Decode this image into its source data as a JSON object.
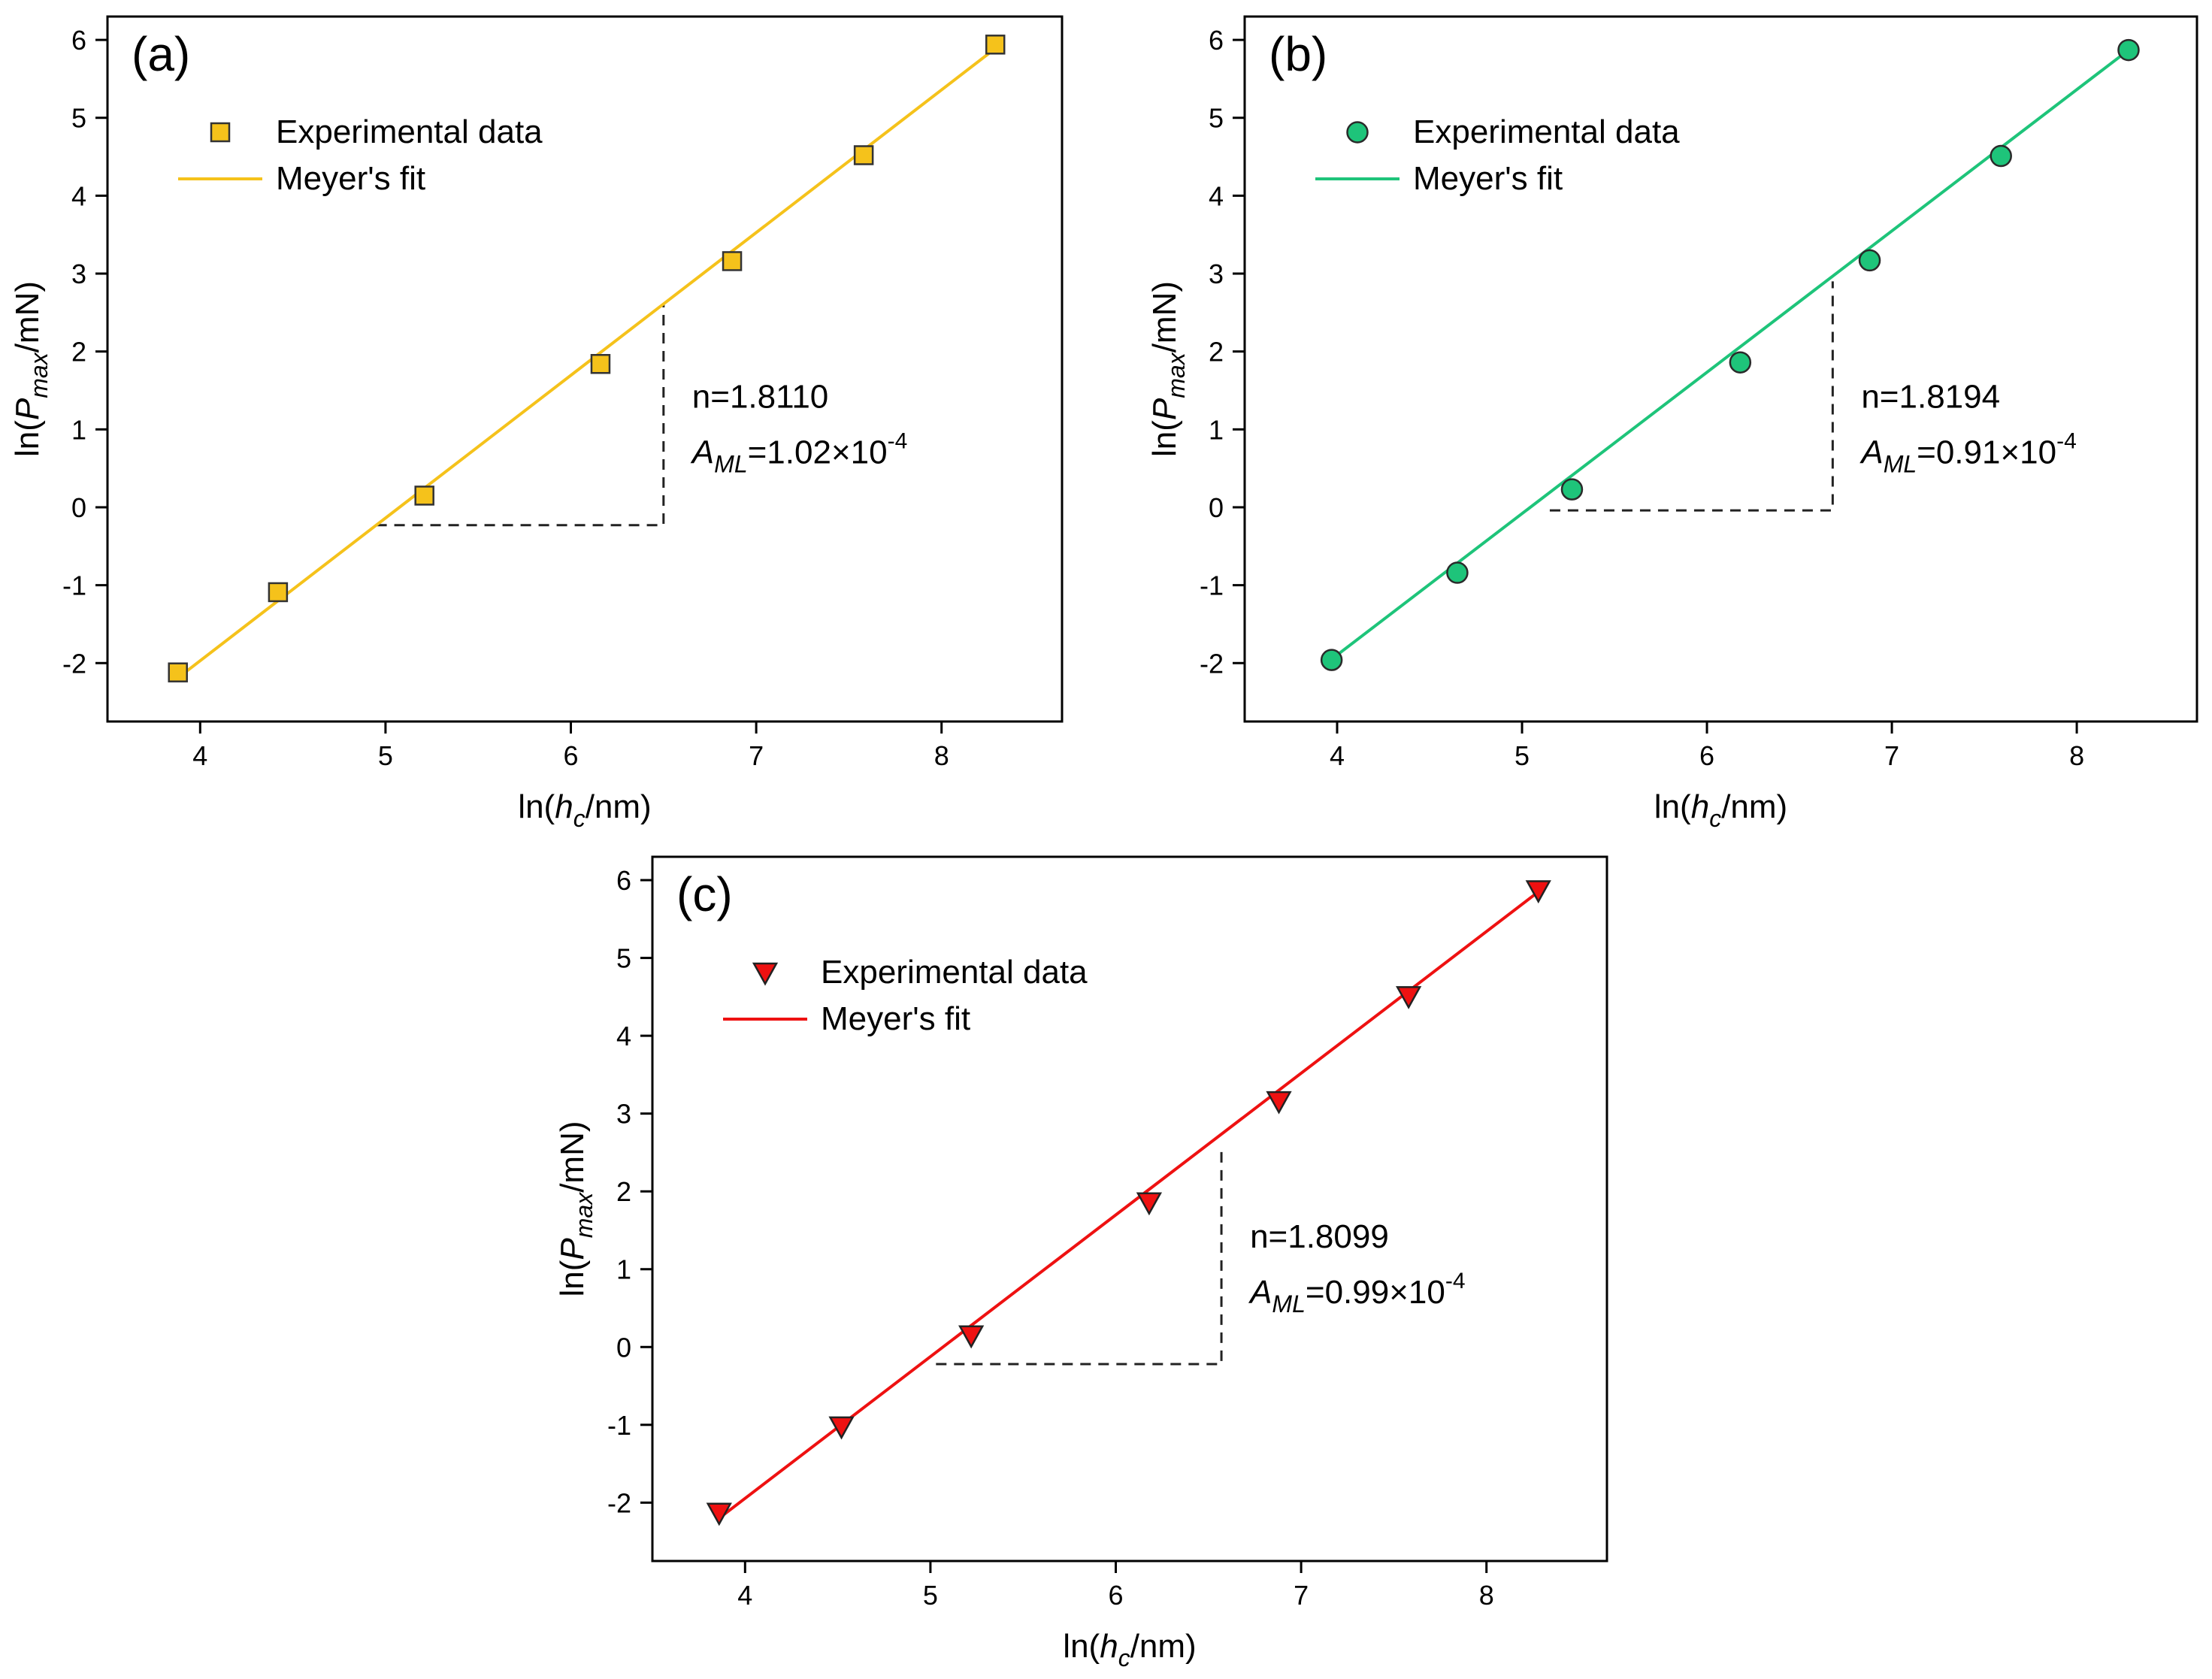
{
  "chart_data": [
    {
      "type": "scatter",
      "panel_label": "(a)",
      "color": "#f5c21b",
      "edge_color": "#333333",
      "marker": "square",
      "xlabel_prefix": "ln(",
      "xlabel_italic": "h",
      "xlabel_sub": "c",
      "xlabel_suffix": "/nm)",
      "ylabel_prefix": "ln(",
      "ylabel_italic": "P",
      "ylabel_sub": "max",
      "ylabel_suffix": "/mN)",
      "xlim": [
        3.5,
        8.65
      ],
      "ylim": [
        -2.75,
        6.3
      ],
      "xticks": [
        4,
        5,
        6,
        7,
        8
      ],
      "xtick_labels": [
        "4",
        "5",
        "6",
        "7",
        "8"
      ],
      "yticks": [
        -2,
        -1,
        0,
        1,
        2,
        3,
        4,
        5,
        6
      ],
      "ytick_labels": [
        "-2",
        "-1",
        "0",
        "1",
        "2",
        "3",
        "4",
        "5",
        "6"
      ],
      "series": [
        {
          "name": "Experimental data",
          "x": [
            3.88,
            4.42,
            5.21,
            6.16,
            6.87,
            7.58,
            8.29
          ],
          "y": [
            -2.12,
            -1.09,
            0.15,
            1.84,
            3.16,
            4.52,
            5.94
          ]
        },
        {
          "name": "Meyer's fit",
          "x": [
            3.88,
            8.29
          ],
          "y": [
            -2.19,
            5.89
          ]
        }
      ],
      "triangle": {
        "x": [
          4.95,
          6.5
        ],
        "y": [
          -0.23,
          2.6
        ]
      },
      "annotation_n": "n=1.8110",
      "annotation_A": "A",
      "annotation_A_sub": "ML",
      "annotation_A_value": "=1.02×10",
      "annotation_A_exp": "-4"
    },
    {
      "type": "scatter",
      "panel_label": "(b)",
      "color": "#1ec47a",
      "edge_color": "#2a2a2a",
      "marker": "circle",
      "xlabel_prefix": "ln(",
      "xlabel_italic": "h",
      "xlabel_sub": "c",
      "xlabel_suffix": "/nm)",
      "ylabel_prefix": "ln(",
      "ylabel_italic": "P",
      "ylabel_sub": "max",
      "ylabel_suffix": "/mN)",
      "xlim": [
        3.5,
        8.65
      ],
      "ylim": [
        -2.75,
        6.3
      ],
      "xticks": [
        4,
        5,
        6,
        7,
        8
      ],
      "xtick_labels": [
        "4",
        "5",
        "6",
        "7",
        "8"
      ],
      "yticks": [
        -2,
        -1,
        0,
        1,
        2,
        3,
        4,
        5,
        6
      ],
      "ytick_labels": [
        "-2",
        "-1",
        "0",
        "1",
        "2",
        "3",
        "4",
        "5",
        "6"
      ],
      "series": [
        {
          "name": "Experimental data",
          "x": [
            3.97,
            4.65,
            5.27,
            6.18,
            6.88,
            7.59,
            8.28
          ],
          "y": [
            -1.96,
            -0.84,
            0.23,
            1.86,
            3.17,
            4.51,
            5.87
          ]
        },
        {
          "name": "Meyer's fit",
          "x": [
            3.97,
            8.28
          ],
          "y": [
            -1.95,
            5.87
          ]
        }
      ],
      "triangle": {
        "x": [
          5.15,
          6.68
        ],
        "y": [
          -0.04,
          2.9
        ]
      },
      "annotation_n": "n=1.8194",
      "annotation_A": "A",
      "annotation_A_sub": "ML",
      "annotation_A_value": "=0.91×10",
      "annotation_A_exp": "-4"
    },
    {
      "type": "scatter",
      "panel_label": "(c)",
      "color": "#ee1111",
      "edge_color": "#222222",
      "marker": "triangle-down",
      "xlabel_prefix": "ln(",
      "xlabel_italic": "h",
      "xlabel_sub": "c",
      "xlabel_suffix": "/nm)",
      "ylabel_prefix": "ln(",
      "ylabel_italic": "P",
      "ylabel_sub": "max",
      "ylabel_suffix": "/mN)",
      "xlim": [
        3.5,
        8.65
      ],
      "ylim": [
        -2.75,
        6.3
      ],
      "xticks": [
        4,
        5,
        6,
        7,
        8
      ],
      "xtick_labels": [
        "4",
        "5",
        "6",
        "7",
        "8"
      ],
      "yticks": [
        -2,
        -1,
        0,
        1,
        2,
        3,
        4,
        5,
        6
      ],
      "ytick_labels": [
        "-2",
        "-1",
        "0",
        "1",
        "2",
        "3",
        "4",
        "5",
        "6"
      ],
      "series": [
        {
          "name": "Experimental data",
          "x": [
            3.86,
            4.52,
            5.22,
            6.18,
            6.88,
            7.58,
            8.28
          ],
          "y": [
            -2.13,
            -1.02,
            0.15,
            1.86,
            3.16,
            4.51,
            5.87
          ]
        },
        {
          "name": "Meyer's fit",
          "x": [
            3.86,
            8.28
          ],
          "y": [
            -2.2,
            5.85
          ]
        }
      ],
      "triangle": {
        "x": [
          5.03,
          6.57
        ],
        "y": [
          -0.22,
          2.6
        ]
      },
      "annotation_n": "n=1.8099",
      "annotation_A": "A",
      "annotation_A_sub": "ML",
      "annotation_A_value": "=0.99×10",
      "annotation_A_exp": "-4"
    }
  ]
}
